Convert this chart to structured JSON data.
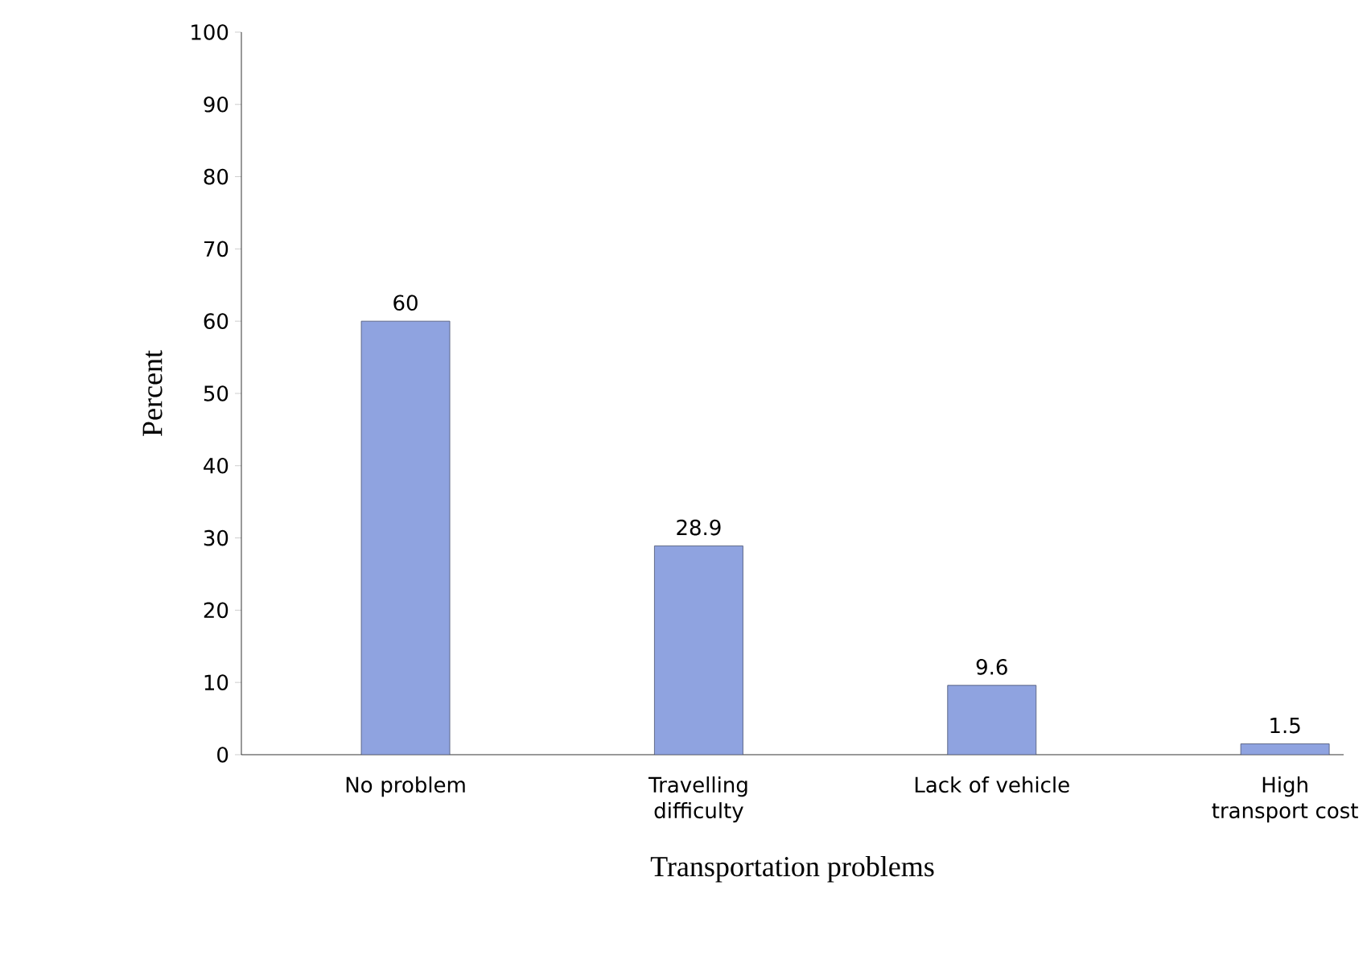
{
  "chart_data": {
    "type": "bar",
    "xlabel": "Transportation problems",
    "ylabel": "Percent",
    "categories": [
      "No problem",
      "Travelling difficulty",
      "Lack of vehicle",
      "High transport cost"
    ],
    "values": [
      60,
      28.9,
      9.6,
      1.5
    ],
    "color": "#8fa3e0",
    "ylim": [
      0,
      100
    ],
    "yticks": [
      0,
      10,
      20,
      30,
      40,
      50,
      60,
      70,
      80,
      90,
      100
    ],
    "data_labels": true,
    "grid": false
  }
}
